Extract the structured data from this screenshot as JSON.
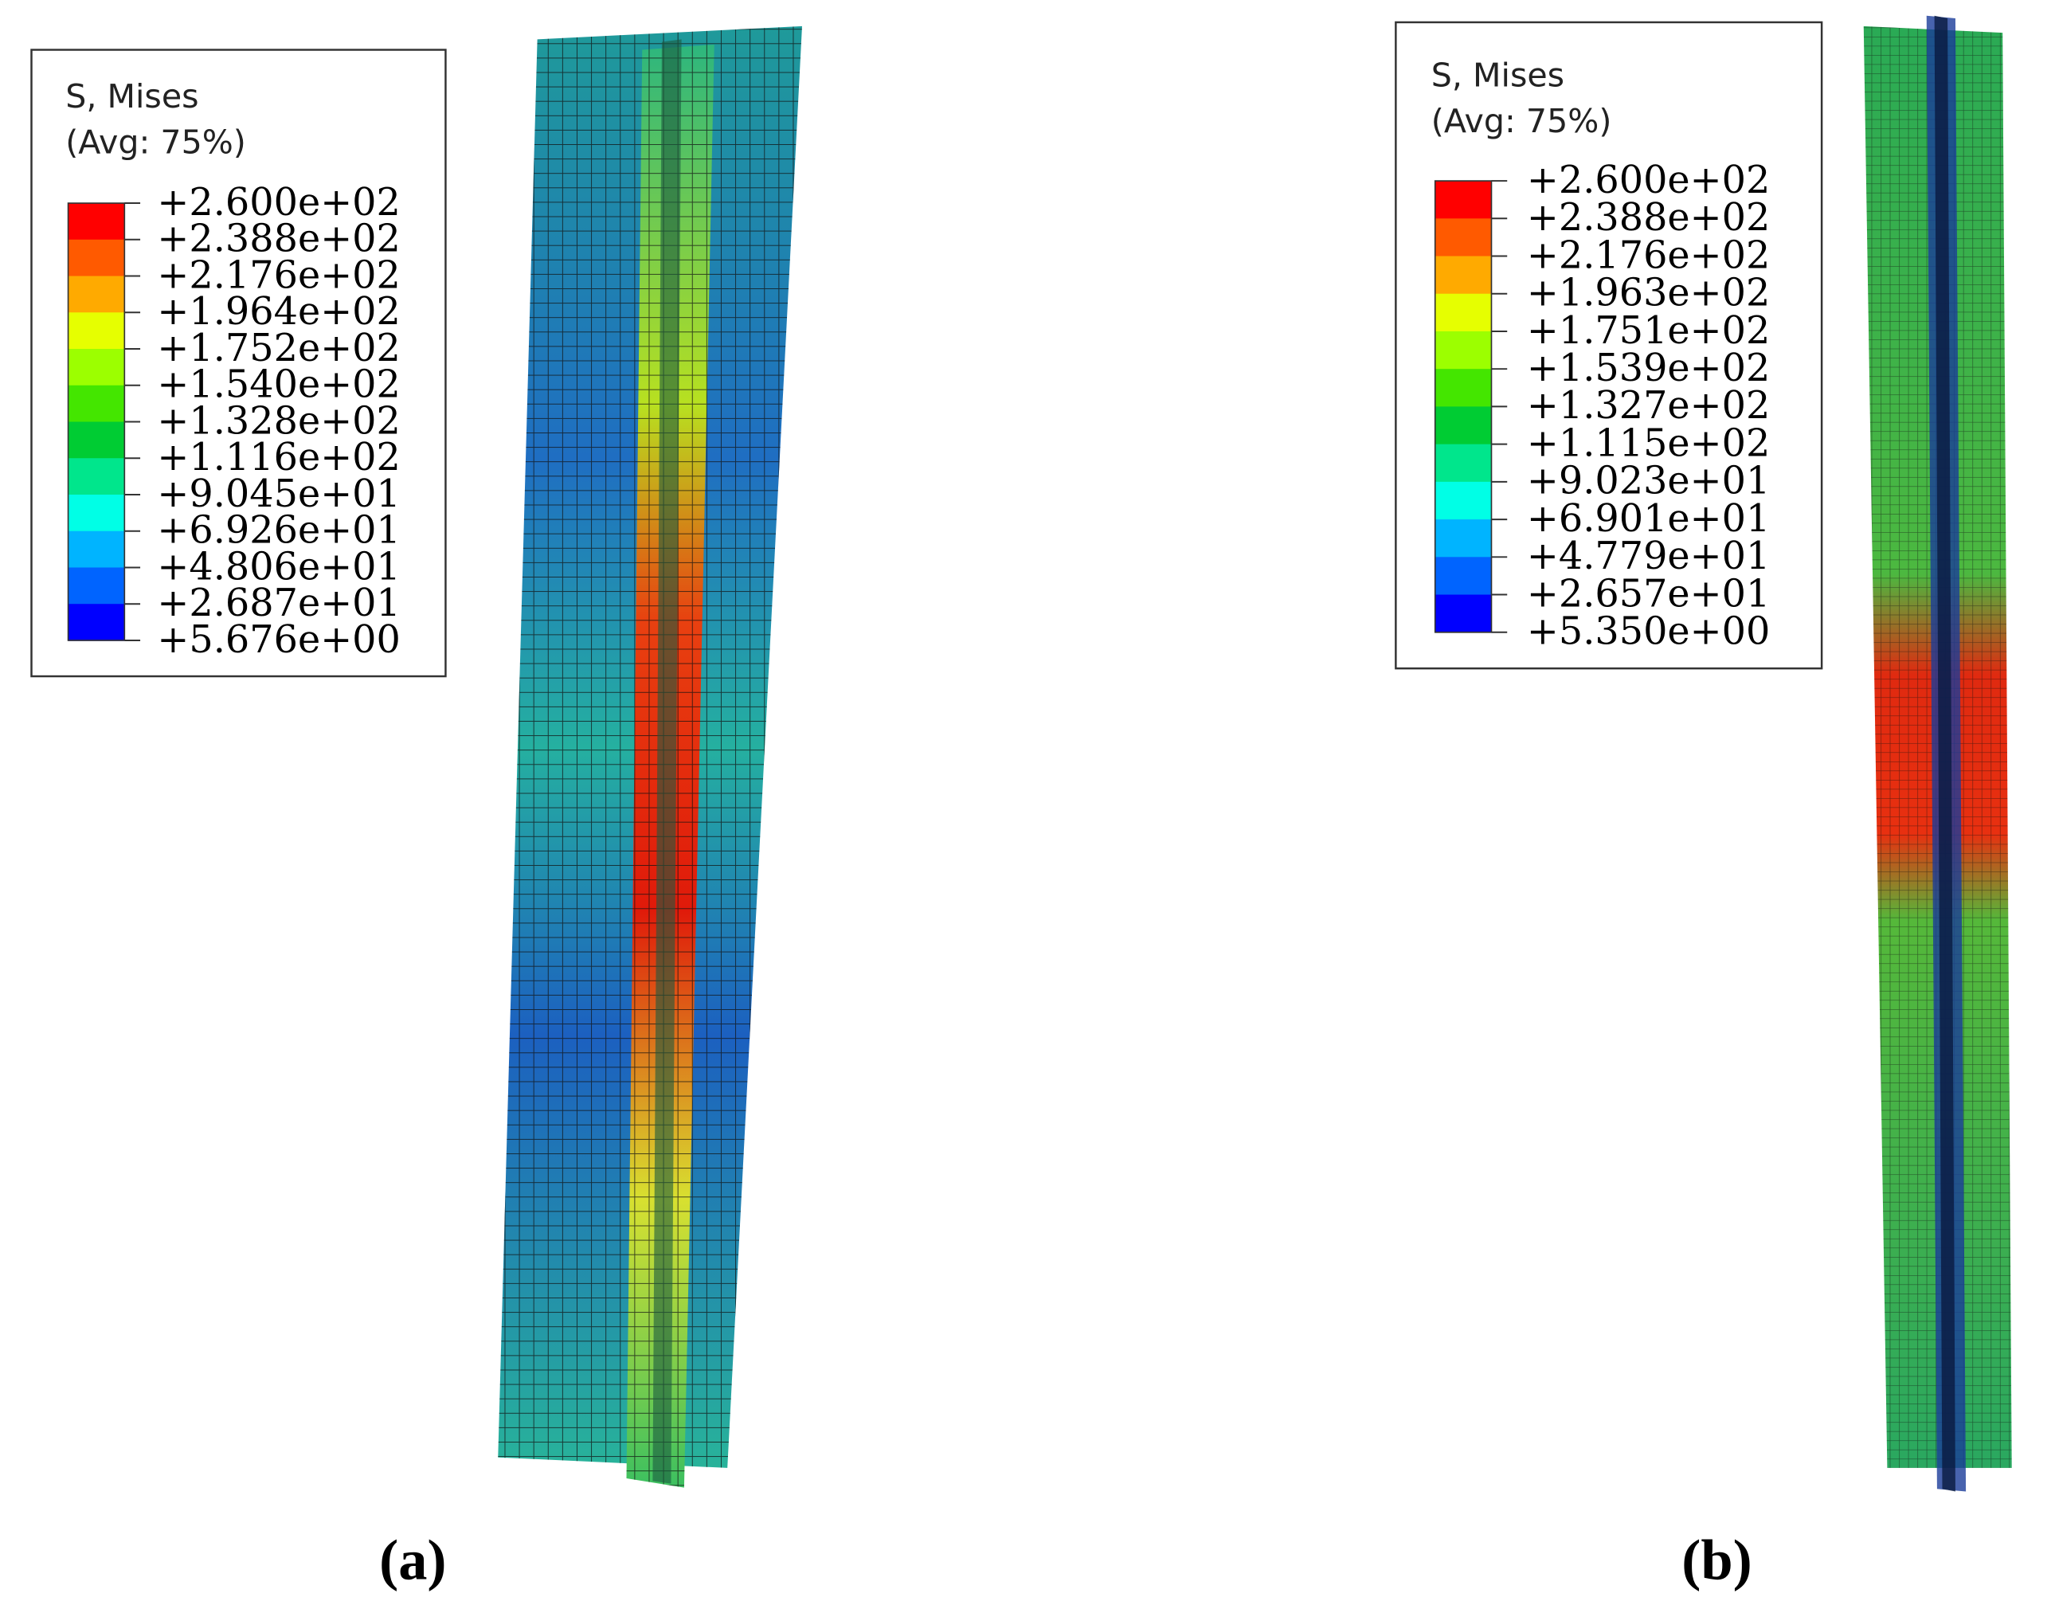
{
  "panels": [
    {
      "legend": {
        "title": "S, Mises",
        "subtitle": "(Avg: 75%)",
        "labels": [
          "+2.600e+02",
          "+2.388e+02",
          "+2.176e+02",
          "+1.964e+02",
          "+1.752e+02",
          "+1.540e+02",
          "+1.328e+02",
          "+1.116e+02",
          "+9.045e+01",
          "+6.926e+01",
          "+4.806e+01",
          "+2.687e+01",
          "+5.676e+00"
        ],
        "colors": [
          "#ff0000",
          "#ff5a00",
          "#ffaa00",
          "#e6ff00",
          "#9cff00",
          "#44e600",
          "#00cc33",
          "#00e68c",
          "#00ffe6",
          "#00b4ff",
          "#0064ff",
          "#0000ff"
        ]
      },
      "caption": "(a)"
    },
    {
      "legend": {
        "title": "S, Mises",
        "subtitle": "(Avg: 75%)",
        "labels": [
          "+2.600e+02",
          "+2.388e+02",
          "+2.176e+02",
          "+1.963e+02",
          "+1.751e+02",
          "+1.539e+02",
          "+1.327e+02",
          "+1.115e+02",
          "+9.023e+01",
          "+6.901e+01",
          "+4.779e+01",
          "+2.657e+01",
          "+5.350e+00"
        ],
        "colors": [
          "#ff0000",
          "#ff5a00",
          "#ffaa00",
          "#e6ff00",
          "#9cff00",
          "#44e600",
          "#00cc33",
          "#00e68c",
          "#00ffe6",
          "#00b4ff",
          "#0064ff",
          "#0000ff"
        ]
      },
      "caption": "(b)"
    }
  ]
}
